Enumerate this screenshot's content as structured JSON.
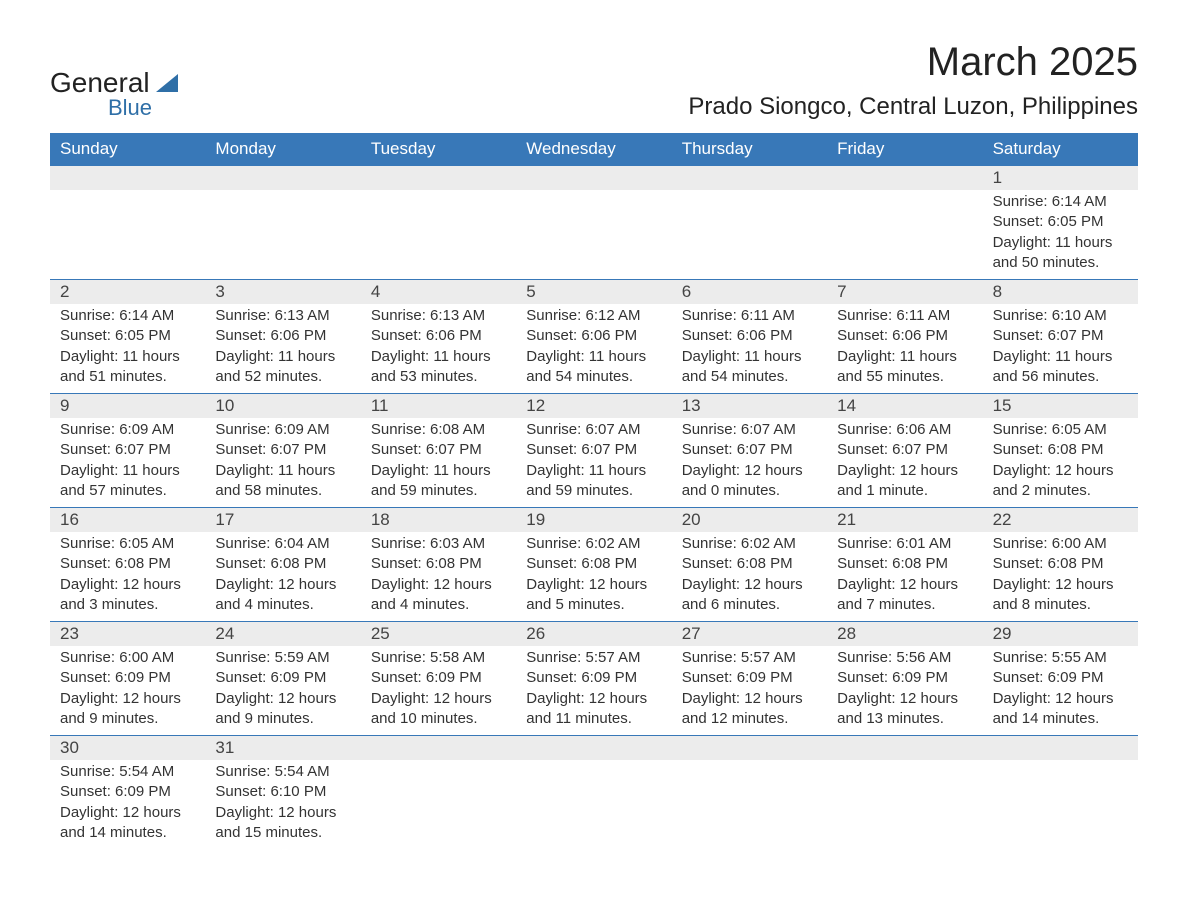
{
  "logo": {
    "word1": "General",
    "word2": "Blue"
  },
  "title": "March 2025",
  "location": "Prado Siongco, Central Luzon, Philippines",
  "colors": {
    "header_bg": "#3878b8",
    "header_text": "#ffffff",
    "daynum_bg": "#ececec",
    "week_border": "#3878b8",
    "text": "#333333",
    "logo_blue": "#2f6fa7"
  },
  "day_labels": [
    "Sunday",
    "Monday",
    "Tuesday",
    "Wednesday",
    "Thursday",
    "Friday",
    "Saturday"
  ],
  "weeks": [
    [
      {
        "empty": true
      },
      {
        "empty": true
      },
      {
        "empty": true
      },
      {
        "empty": true
      },
      {
        "empty": true
      },
      {
        "empty": true
      },
      {
        "day": "1",
        "sunrise": "Sunrise: 6:14 AM",
        "sunset": "Sunset: 6:05 PM",
        "daylight": "Daylight: 11 hours and 50 minutes."
      }
    ],
    [
      {
        "day": "2",
        "sunrise": "Sunrise: 6:14 AM",
        "sunset": "Sunset: 6:05 PM",
        "daylight": "Daylight: 11 hours and 51 minutes."
      },
      {
        "day": "3",
        "sunrise": "Sunrise: 6:13 AM",
        "sunset": "Sunset: 6:06 PM",
        "daylight": "Daylight: 11 hours and 52 minutes."
      },
      {
        "day": "4",
        "sunrise": "Sunrise: 6:13 AM",
        "sunset": "Sunset: 6:06 PM",
        "daylight": "Daylight: 11 hours and 53 minutes."
      },
      {
        "day": "5",
        "sunrise": "Sunrise: 6:12 AM",
        "sunset": "Sunset: 6:06 PM",
        "daylight": "Daylight: 11 hours and 54 minutes."
      },
      {
        "day": "6",
        "sunrise": "Sunrise: 6:11 AM",
        "sunset": "Sunset: 6:06 PM",
        "daylight": "Daylight: 11 hours and 54 minutes."
      },
      {
        "day": "7",
        "sunrise": "Sunrise: 6:11 AM",
        "sunset": "Sunset: 6:06 PM",
        "daylight": "Daylight: 11 hours and 55 minutes."
      },
      {
        "day": "8",
        "sunrise": "Sunrise: 6:10 AM",
        "sunset": "Sunset: 6:07 PM",
        "daylight": "Daylight: 11 hours and 56 minutes."
      }
    ],
    [
      {
        "day": "9",
        "sunrise": "Sunrise: 6:09 AM",
        "sunset": "Sunset: 6:07 PM",
        "daylight": "Daylight: 11 hours and 57 minutes."
      },
      {
        "day": "10",
        "sunrise": "Sunrise: 6:09 AM",
        "sunset": "Sunset: 6:07 PM",
        "daylight": "Daylight: 11 hours and 58 minutes."
      },
      {
        "day": "11",
        "sunrise": "Sunrise: 6:08 AM",
        "sunset": "Sunset: 6:07 PM",
        "daylight": "Daylight: 11 hours and 59 minutes."
      },
      {
        "day": "12",
        "sunrise": "Sunrise: 6:07 AM",
        "sunset": "Sunset: 6:07 PM",
        "daylight": "Daylight: 11 hours and 59 minutes."
      },
      {
        "day": "13",
        "sunrise": "Sunrise: 6:07 AM",
        "sunset": "Sunset: 6:07 PM",
        "daylight": "Daylight: 12 hours and 0 minutes."
      },
      {
        "day": "14",
        "sunrise": "Sunrise: 6:06 AM",
        "sunset": "Sunset: 6:07 PM",
        "daylight": "Daylight: 12 hours and 1 minute."
      },
      {
        "day": "15",
        "sunrise": "Sunrise: 6:05 AM",
        "sunset": "Sunset: 6:08 PM",
        "daylight": "Daylight: 12 hours and 2 minutes."
      }
    ],
    [
      {
        "day": "16",
        "sunrise": "Sunrise: 6:05 AM",
        "sunset": "Sunset: 6:08 PM",
        "daylight": "Daylight: 12 hours and 3 minutes."
      },
      {
        "day": "17",
        "sunrise": "Sunrise: 6:04 AM",
        "sunset": "Sunset: 6:08 PM",
        "daylight": "Daylight: 12 hours and 4 minutes."
      },
      {
        "day": "18",
        "sunrise": "Sunrise: 6:03 AM",
        "sunset": "Sunset: 6:08 PM",
        "daylight": "Daylight: 12 hours and 4 minutes."
      },
      {
        "day": "19",
        "sunrise": "Sunrise: 6:02 AM",
        "sunset": "Sunset: 6:08 PM",
        "daylight": "Daylight: 12 hours and 5 minutes."
      },
      {
        "day": "20",
        "sunrise": "Sunrise: 6:02 AM",
        "sunset": "Sunset: 6:08 PM",
        "daylight": "Daylight: 12 hours and 6 minutes."
      },
      {
        "day": "21",
        "sunrise": "Sunrise: 6:01 AM",
        "sunset": "Sunset: 6:08 PM",
        "daylight": "Daylight: 12 hours and 7 minutes."
      },
      {
        "day": "22",
        "sunrise": "Sunrise: 6:00 AM",
        "sunset": "Sunset: 6:08 PM",
        "daylight": "Daylight: 12 hours and 8 minutes."
      }
    ],
    [
      {
        "day": "23",
        "sunrise": "Sunrise: 6:00 AM",
        "sunset": "Sunset: 6:09 PM",
        "daylight": "Daylight: 12 hours and 9 minutes."
      },
      {
        "day": "24",
        "sunrise": "Sunrise: 5:59 AM",
        "sunset": "Sunset: 6:09 PM",
        "daylight": "Daylight: 12 hours and 9 minutes."
      },
      {
        "day": "25",
        "sunrise": "Sunrise: 5:58 AM",
        "sunset": "Sunset: 6:09 PM",
        "daylight": "Daylight: 12 hours and 10 minutes."
      },
      {
        "day": "26",
        "sunrise": "Sunrise: 5:57 AM",
        "sunset": "Sunset: 6:09 PM",
        "daylight": "Daylight: 12 hours and 11 minutes."
      },
      {
        "day": "27",
        "sunrise": "Sunrise: 5:57 AM",
        "sunset": "Sunset: 6:09 PM",
        "daylight": "Daylight: 12 hours and 12 minutes."
      },
      {
        "day": "28",
        "sunrise": "Sunrise: 5:56 AM",
        "sunset": "Sunset: 6:09 PM",
        "daylight": "Daylight: 12 hours and 13 minutes."
      },
      {
        "day": "29",
        "sunrise": "Sunrise: 5:55 AM",
        "sunset": "Sunset: 6:09 PM",
        "daylight": "Daylight: 12 hours and 14 minutes."
      }
    ],
    [
      {
        "day": "30",
        "sunrise": "Sunrise: 5:54 AM",
        "sunset": "Sunset: 6:09 PM",
        "daylight": "Daylight: 12 hours and 14 minutes."
      },
      {
        "day": "31",
        "sunrise": "Sunrise: 5:54 AM",
        "sunset": "Sunset: 6:10 PM",
        "daylight": "Daylight: 12 hours and 15 minutes."
      },
      {
        "empty": true
      },
      {
        "empty": true
      },
      {
        "empty": true
      },
      {
        "empty": true
      },
      {
        "empty": true
      }
    ]
  ]
}
